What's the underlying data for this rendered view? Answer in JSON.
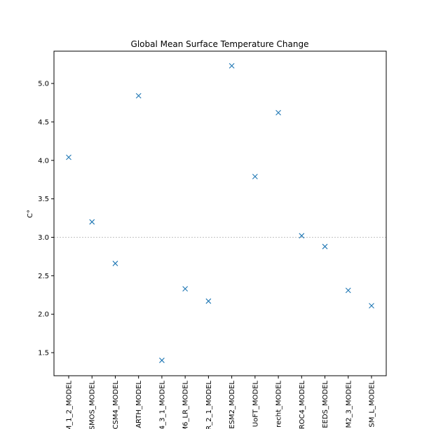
{
  "chart_data": {
    "type": "scatter",
    "title": "Global Mean Surface Temperature Change",
    "xlabel": "",
    "ylabel": "C°",
    "categories": [
      "M_1_2_MODEL",
      "SMOS_MODEL",
      "CSM4_MODEL",
      "ARTH_MODEL",
      "4_3_1_MODEL",
      "M6_LR_MODEL",
      "R_2_1_MODEL",
      "ESM2_MODEL",
      "UoFT_MODEL",
      "recht_MODEL",
      "ROC4_MODEL",
      "EEDS_MODEL",
      "M2_3_MODEL",
      "SM_L_MODEL"
    ],
    "values": [
      4.04,
      3.2,
      2.66,
      4.84,
      1.4,
      2.33,
      2.17,
      5.23,
      3.79,
      4.62,
      3.02,
      2.88,
      2.31,
      2.11
    ],
    "ylim": [
      1.2,
      5.42
    ],
    "yticks": [
      "1.5",
      "2.0",
      "2.5",
      "3.0",
      "3.5",
      "4.0",
      "4.5",
      "5.0"
    ],
    "reference_line": 3.0,
    "marker": "x",
    "grid": false,
    "colors": {
      "marker": "#1f77b4",
      "reference_line": "#b0b0b0",
      "axis": "#000000"
    }
  }
}
